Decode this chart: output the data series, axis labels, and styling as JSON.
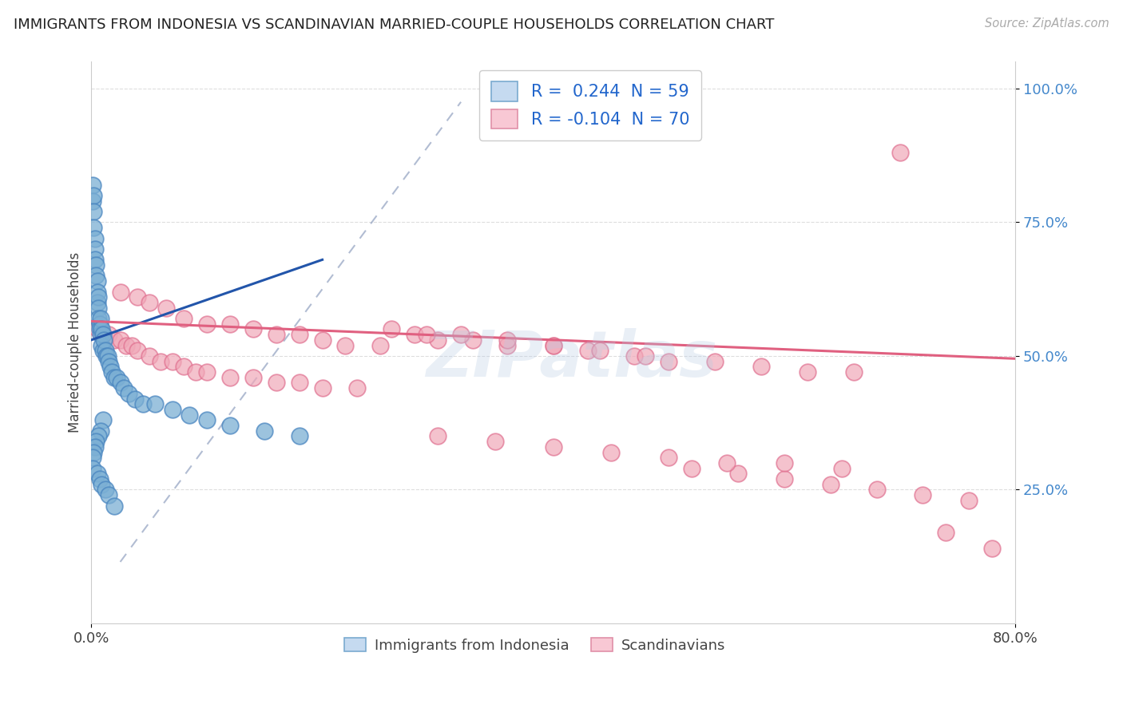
{
  "title": "IMMIGRANTS FROM INDONESIA VS SCANDINAVIAN MARRIED-COUPLE HOUSEHOLDS CORRELATION CHART",
  "source": "Source: ZipAtlas.com",
  "ylabel": "Married-couple Households",
  "xlim": [
    0.0,
    0.8
  ],
  "ylim": [
    0.0,
    1.05
  ],
  "ytick_values": [
    0.25,
    0.5,
    0.75,
    1.0
  ],
  "ytick_labels": [
    "25.0%",
    "50.0%",
    "75.0%",
    "100.0%"
  ],
  "xtick_values": [
    0.0,
    0.8
  ],
  "xtick_labels": [
    "0.0%",
    "80.0%"
  ],
  "watermark": "ZIPatlas",
  "blue_line_x": [
    0.0,
    0.2
  ],
  "blue_line_y": [
    0.53,
    0.68
  ],
  "pink_line_x": [
    0.0,
    0.8
  ],
  "pink_line_y": [
    0.565,
    0.495
  ],
  "dashed_line_x": [
    0.025,
    0.32
  ],
  "dashed_line_y": [
    0.115,
    0.975
  ],
  "blue_color": "#7bafd4",
  "blue_edge": "#4a86c0",
  "pink_color": "#f0a8b8",
  "pink_edge": "#e07090",
  "blue_line_color": "#2255aa",
  "pink_line_color": "#e06080",
  "dashed_color": "#8899bb",
  "legend1_label": "R =  0.244  N = 59",
  "legend2_label": "R = -0.104  N = 70",
  "bottom_label1": "Immigrants from Indonesia",
  "bottom_label2": "Scandinavians",
  "blue_scatter_x": [
    0.001,
    0.001,
    0.002,
    0.002,
    0.002,
    0.003,
    0.003,
    0.003,
    0.004,
    0.004,
    0.005,
    0.005,
    0.005,
    0.006,
    0.006,
    0.006,
    0.007,
    0.007,
    0.008,
    0.008,
    0.009,
    0.009,
    0.01,
    0.01,
    0.011,
    0.012,
    0.013,
    0.014,
    0.015,
    0.016,
    0.018,
    0.02,
    0.022,
    0.025,
    0.028,
    0.032,
    0.038,
    0.045,
    0.055,
    0.07,
    0.085,
    0.1,
    0.12,
    0.15,
    0.18,
    0.01,
    0.008,
    0.006,
    0.004,
    0.003,
    0.002,
    0.001,
    0.001,
    0.005,
    0.007,
    0.009,
    0.012,
    0.015,
    0.02
  ],
  "blue_scatter_y": [
    0.82,
    0.79,
    0.8,
    0.77,
    0.74,
    0.72,
    0.7,
    0.68,
    0.67,
    0.65,
    0.64,
    0.62,
    0.6,
    0.61,
    0.59,
    0.57,
    0.56,
    0.55,
    0.57,
    0.54,
    0.55,
    0.52,
    0.54,
    0.51,
    0.53,
    0.51,
    0.5,
    0.5,
    0.49,
    0.48,
    0.47,
    0.46,
    0.46,
    0.45,
    0.44,
    0.43,
    0.42,
    0.41,
    0.41,
    0.4,
    0.39,
    0.38,
    0.37,
    0.36,
    0.35,
    0.38,
    0.36,
    0.35,
    0.34,
    0.33,
    0.32,
    0.31,
    0.29,
    0.28,
    0.27,
    0.26,
    0.25,
    0.24,
    0.22
  ],
  "pink_scatter_x": [
    0.025,
    0.04,
    0.05,
    0.065,
    0.08,
    0.1,
    0.12,
    0.14,
    0.16,
    0.18,
    0.2,
    0.22,
    0.25,
    0.28,
    0.3,
    0.33,
    0.36,
    0.4,
    0.43,
    0.47,
    0.5,
    0.54,
    0.58,
    0.62,
    0.66,
    0.7,
    0.74,
    0.78,
    0.005,
    0.01,
    0.015,
    0.02,
    0.025,
    0.03,
    0.035,
    0.04,
    0.05,
    0.06,
    0.07,
    0.08,
    0.09,
    0.1,
    0.12,
    0.14,
    0.16,
    0.18,
    0.2,
    0.23,
    0.26,
    0.29,
    0.32,
    0.36,
    0.4,
    0.44,
    0.48,
    0.52,
    0.56,
    0.6,
    0.64,
    0.68,
    0.72,
    0.76,
    0.3,
    0.35,
    0.4,
    0.45,
    0.5,
    0.55,
    0.6,
    0.65
  ],
  "pink_scatter_y": [
    0.62,
    0.61,
    0.6,
    0.59,
    0.57,
    0.56,
    0.56,
    0.55,
    0.54,
    0.54,
    0.53,
    0.52,
    0.52,
    0.54,
    0.53,
    0.53,
    0.52,
    0.52,
    0.51,
    0.5,
    0.49,
    0.49,
    0.48,
    0.47,
    0.47,
    0.88,
    0.17,
    0.14,
    0.55,
    0.54,
    0.54,
    0.53,
    0.53,
    0.52,
    0.52,
    0.51,
    0.5,
    0.49,
    0.49,
    0.48,
    0.47,
    0.47,
    0.46,
    0.46,
    0.45,
    0.45,
    0.44,
    0.44,
    0.55,
    0.54,
    0.54,
    0.53,
    0.52,
    0.51,
    0.5,
    0.29,
    0.28,
    0.27,
    0.26,
    0.25,
    0.24,
    0.23,
    0.35,
    0.34,
    0.33,
    0.32,
    0.31,
    0.3,
    0.3,
    0.29
  ]
}
